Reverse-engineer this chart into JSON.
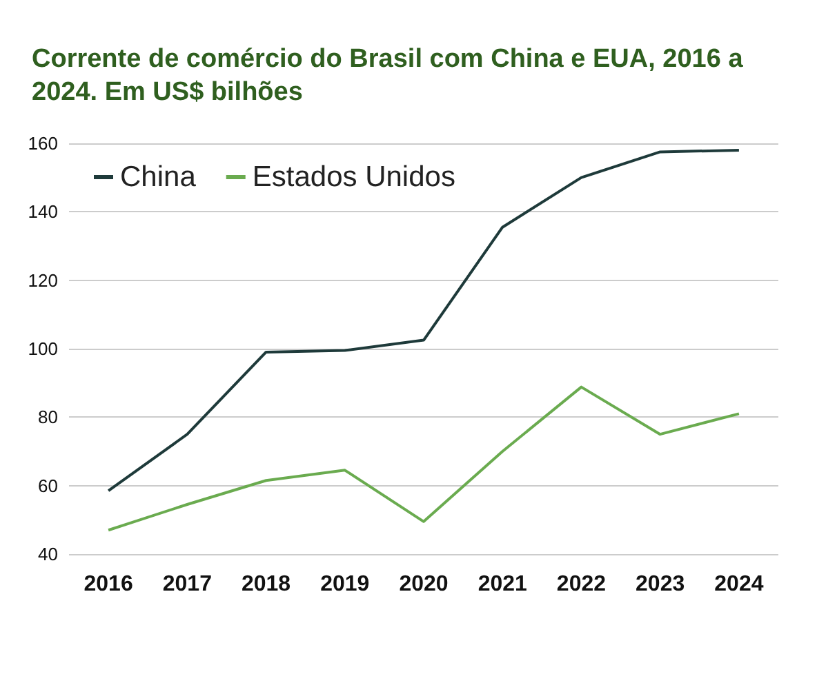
{
  "chart_data": {
    "type": "line",
    "title": "Corrente de comércio do Brasil com China e EUA, 2016 a 2024. Em US$ bilhões",
    "categories": [
      "2016",
      "2017",
      "2018",
      "2019",
      "2020",
      "2021",
      "2022",
      "2023",
      "2024"
    ],
    "series": [
      {
        "name": "China",
        "color": "#1e3a3a",
        "values": [
          58.5,
          75,
          99,
          99.5,
          102.5,
          135.5,
          150,
          157.5,
          158
        ]
      },
      {
        "name": "Estados Unidos",
        "color": "#6aab4f",
        "values": [
          47,
          54.5,
          61.5,
          64.5,
          49.5,
          70,
          88.8,
          75,
          81
        ]
      }
    ],
    "ylim": [
      40,
      160
    ],
    "yticks": [
      40,
      60,
      80,
      100,
      120,
      140,
      160
    ],
    "grid": "y",
    "legend": "top left",
    "marker": "none",
    "line_style": "solid"
  }
}
